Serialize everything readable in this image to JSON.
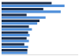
{
  "chart_data": {
    "type": "bar",
    "orientation": "horizontal",
    "categories": [
      null,
      null,
      null,
      null,
      null,
      null,
      null,
      null,
      null
    ],
    "series": [
      {
        "color": "#1c2e4a",
        "values": [
          66,
          55,
          33,
          50,
          36,
          35,
          33,
          30,
          34
        ]
      },
      {
        "color": "#4f8fda",
        "values": [
          83,
          78,
          58,
          47,
          40,
          37,
          36,
          35,
          34
        ]
      }
    ],
    "xlim": [
      0,
      100
    ],
    "xticks": [],
    "grid": false,
    "tick_labels": false
  }
}
